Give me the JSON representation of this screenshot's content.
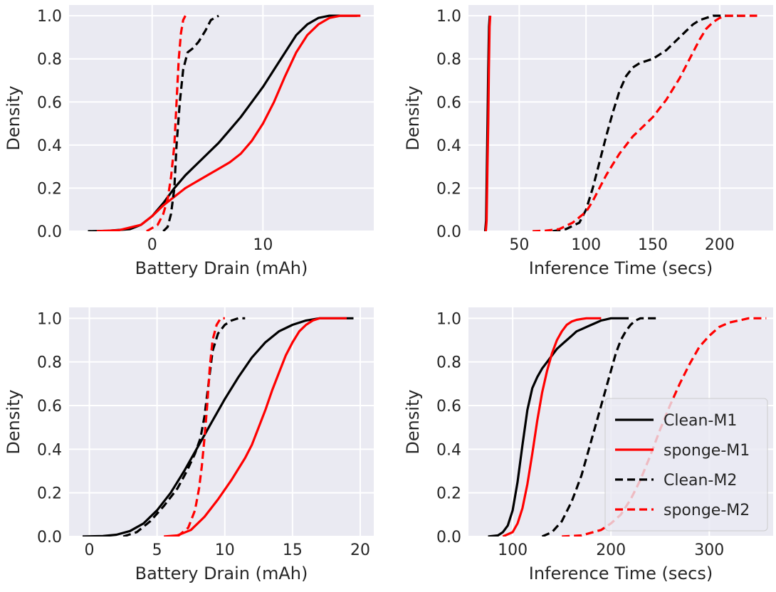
{
  "chart_data": [
    {
      "type": "line",
      "panel": "top-left",
      "xlabel": "Battery Drain (mAh)",
      "ylabel": "Density",
      "xlim": [
        -7.5,
        20
      ],
      "ylim": [
        0,
        1.05
      ],
      "xticks": [
        0,
        10
      ],
      "yticks": [
        0.0,
        0.2,
        0.4,
        0.6,
        0.8,
        1.0
      ],
      "grid": true,
      "series": [
        {
          "name": "Clean-M1",
          "color": "#000000",
          "dash": "solid",
          "x": [
            -5.8,
            -4,
            -2,
            -1,
            0,
            1,
            2,
            3,
            4,
            5,
            6,
            7,
            8,
            9,
            10,
            11,
            12,
            13,
            14,
            15,
            16,
            17,
            18.5
          ],
          "y": [
            0,
            0.002,
            0.01,
            0.03,
            0.07,
            0.13,
            0.2,
            0.26,
            0.31,
            0.36,
            0.41,
            0.47,
            0.53,
            0.6,
            0.67,
            0.75,
            0.83,
            0.91,
            0.96,
            0.99,
            1.0,
            1.0,
            1.0
          ]
        },
        {
          "name": "sponge-M1",
          "color": "#ff0000",
          "dash": "solid",
          "x": [
            -5,
            -3,
            -1,
            0,
            1,
            2,
            3,
            4,
            5,
            6,
            7,
            8,
            9,
            10,
            11,
            12,
            13,
            14,
            15,
            16,
            17,
            18,
            18.8
          ],
          "y": [
            0,
            0.005,
            0.03,
            0.07,
            0.12,
            0.16,
            0.2,
            0.23,
            0.26,
            0.29,
            0.32,
            0.36,
            0.42,
            0.5,
            0.6,
            0.72,
            0.83,
            0.91,
            0.96,
            0.99,
            1.0,
            1.0,
            1.0
          ]
        },
        {
          "name": "Clean-M2",
          "color": "#000000",
          "dash": "dashed",
          "x": [
            1.0,
            1.4,
            1.7,
            2.0,
            2.2,
            2.5,
            2.8,
            3.2,
            3.7,
            4.2,
            4.8,
            5.3,
            6.0
          ],
          "y": [
            0,
            0.02,
            0.08,
            0.2,
            0.4,
            0.6,
            0.75,
            0.83,
            0.85,
            0.88,
            0.93,
            0.98,
            1.0
          ]
        },
        {
          "name": "sponge-M2",
          "color": "#ff0000",
          "dash": "dashed",
          "x": [
            -0.5,
            0.5,
            1.0,
            1.4,
            1.7,
            2.0,
            2.2,
            2.4,
            2.6,
            2.8,
            3.0
          ],
          "y": [
            0,
            0.03,
            0.08,
            0.15,
            0.25,
            0.4,
            0.6,
            0.8,
            0.92,
            0.98,
            1.0
          ]
        }
      ]
    },
    {
      "type": "line",
      "panel": "top-right",
      "xlabel": "Inference Time (secs)",
      "ylabel": "Density",
      "xlim": [
        12,
        240
      ],
      "ylim": [
        0,
        1.05
      ],
      "xticks": [
        50,
        100,
        150,
        200
      ],
      "yticks": [
        0.0,
        0.2,
        0.4,
        0.6,
        0.8,
        1.0
      ],
      "grid": true,
      "series": [
        {
          "name": "Clean-M1",
          "color": "#000000",
          "dash": "solid",
          "x": [
            24.5,
            25.2,
            25.8,
            26.3,
            26.8,
            27.4,
            28
          ],
          "y": [
            0,
            0.05,
            0.3,
            0.5,
            0.75,
            0.95,
            1.0
          ]
        },
        {
          "name": "sponge-M1",
          "color": "#ff0000",
          "dash": "solid",
          "x": [
            25,
            25.6,
            26.2,
            26.8,
            27.3,
            27.8,
            28.3
          ],
          "y": [
            0,
            0.05,
            0.3,
            0.5,
            0.75,
            0.95,
            1.0
          ]
        },
        {
          "name": "Clean-M2",
          "color": "#000000",
          "dash": "dashed",
          "x": [
            75,
            85,
            95,
            100,
            105,
            110,
            115,
            120,
            125,
            130,
            135,
            140,
            145,
            150,
            155,
            160,
            165,
            170,
            175,
            180,
            185,
            190,
            195,
            200,
            210,
            220
          ],
          "y": [
            0,
            0.01,
            0.04,
            0.1,
            0.2,
            0.32,
            0.44,
            0.55,
            0.65,
            0.72,
            0.76,
            0.78,
            0.79,
            0.8,
            0.82,
            0.84,
            0.87,
            0.9,
            0.93,
            0.96,
            0.98,
            0.99,
            1.0,
            1.0,
            1.0,
            1.0
          ]
        },
        {
          "name": "sponge-M2",
          "color": "#ff0000",
          "dash": "dashed",
          "x": [
            60,
            70,
            80,
            90,
            100,
            105,
            110,
            115,
            120,
            125,
            130,
            135,
            140,
            145,
            150,
            155,
            160,
            165,
            170,
            175,
            180,
            185,
            190,
            195,
            200,
            205,
            210,
            220,
            228
          ],
          "y": [
            0,
            0.003,
            0.01,
            0.04,
            0.09,
            0.14,
            0.2,
            0.26,
            0.31,
            0.36,
            0.4,
            0.44,
            0.47,
            0.5,
            0.53,
            0.57,
            0.61,
            0.66,
            0.71,
            0.77,
            0.83,
            0.89,
            0.94,
            0.97,
            0.99,
            1.0,
            1.0,
            1.0,
            1.0
          ]
        }
      ]
    },
    {
      "type": "line",
      "panel": "bottom-left",
      "xlabel": "Battery Drain (mAh)",
      "ylabel": "Density",
      "xlim": [
        -1.5,
        21
      ],
      "ylim": [
        0,
        1.05
      ],
      "xticks": [
        0,
        5,
        10,
        15,
        20
      ],
      "yticks": [
        0.0,
        0.2,
        0.4,
        0.6,
        0.8,
        1.0
      ],
      "grid": true,
      "series": [
        {
          "name": "Clean-M1",
          "color": "#000000",
          "dash": "solid",
          "x": [
            -0.5,
            1,
            2,
            3,
            4,
            5,
            6,
            7,
            8,
            9,
            10,
            11,
            12,
            13,
            14,
            15,
            16,
            17,
            18,
            19.5
          ],
          "y": [
            0,
            0.002,
            0.008,
            0.025,
            0.06,
            0.12,
            0.2,
            0.3,
            0.41,
            0.52,
            0.63,
            0.73,
            0.82,
            0.89,
            0.94,
            0.97,
            0.99,
            1.0,
            1.0,
            1.0
          ]
        },
        {
          "name": "sponge-M1",
          "color": "#ff0000",
          "dash": "solid",
          "x": [
            5.5,
            6.5,
            7.5,
            8.5,
            9.5,
            10.5,
            11.5,
            12,
            12.5,
            13,
            13.5,
            14,
            14.5,
            15,
            15.5,
            16,
            16.5,
            17,
            18,
            19
          ],
          "y": [
            0,
            0.005,
            0.03,
            0.09,
            0.17,
            0.26,
            0.36,
            0.42,
            0.5,
            0.58,
            0.67,
            0.75,
            0.83,
            0.89,
            0.94,
            0.97,
            0.99,
            1.0,
            1.0,
            1.0
          ]
        },
        {
          "name": "Clean-M2",
          "color": "#000000",
          "dash": "dashed",
          "x": [
            2.5,
            3.5,
            4.5,
            5.5,
            6.5,
            7.2,
            7.8,
            8.2,
            8.5,
            8.8,
            9.1,
            9.5,
            10,
            10.5,
            11,
            11.5
          ],
          "y": [
            0,
            0.02,
            0.07,
            0.14,
            0.22,
            0.3,
            0.38,
            0.45,
            0.55,
            0.7,
            0.85,
            0.93,
            0.97,
            0.99,
            1.0,
            1.0
          ]
        },
        {
          "name": "sponge-M2",
          "color": "#ff0000",
          "dash": "dashed",
          "x": [
            6.5,
            7.3,
            7.8,
            8.1,
            8.3,
            8.5,
            8.7,
            8.9,
            9.1,
            9.4,
            9.7,
            10.0
          ],
          "y": [
            0,
            0.04,
            0.12,
            0.22,
            0.32,
            0.45,
            0.6,
            0.78,
            0.9,
            0.97,
            1.0,
            1.0
          ]
        }
      ]
    },
    {
      "type": "line",
      "panel": "bottom-right",
      "xlabel": "Inference Time (secs)",
      "ylabel": "Density",
      "xlim": [
        55,
        365
      ],
      "ylim": [
        0,
        1.05
      ],
      "xticks": [
        100,
        200,
        300
      ],
      "yticks": [
        0.0,
        0.2,
        0.4,
        0.6,
        0.8,
        1.0
      ],
      "grid": true,
      "legend": {
        "location": "lower-right",
        "entries": [
          "Clean-M1",
          "sponge-M1",
          "Clean-M2",
          "sponge-M2"
        ]
      },
      "series": [
        {
          "name": "Clean-M1",
          "color": "#000000",
          "dash": "solid",
          "x": [
            75,
            85,
            90,
            95,
            100,
            105,
            110,
            115,
            120,
            125,
            130,
            135,
            140,
            145,
            150,
            155,
            160,
            165,
            170,
            175,
            180,
            185,
            190,
            195,
            200,
            205,
            210,
            218
          ],
          "y": [
            0,
            0.005,
            0.02,
            0.05,
            0.12,
            0.25,
            0.42,
            0.58,
            0.68,
            0.73,
            0.77,
            0.8,
            0.83,
            0.86,
            0.88,
            0.9,
            0.92,
            0.94,
            0.95,
            0.96,
            0.97,
            0.98,
            0.99,
            0.995,
            1.0,
            1.0,
            1.0,
            1.0
          ]
        },
        {
          "name": "sponge-M1",
          "color": "#ff0000",
          "dash": "solid",
          "x": [
            90,
            100,
            105,
            110,
            115,
            120,
            125,
            130,
            135,
            140,
            145,
            150,
            155,
            160,
            165,
            170,
            175,
            180,
            185,
            190
          ],
          "y": [
            0,
            0.02,
            0.06,
            0.13,
            0.24,
            0.38,
            0.53,
            0.66,
            0.76,
            0.84,
            0.9,
            0.94,
            0.97,
            0.985,
            0.993,
            0.997,
            1.0,
            1.0,
            1.0,
            1.0
          ]
        },
        {
          "name": "Clean-M2",
          "color": "#000000",
          "dash": "dashed",
          "x": [
            130,
            140,
            150,
            160,
            170,
            175,
            180,
            185,
            190,
            195,
            200,
            205,
            210,
            215,
            220,
            225,
            230,
            235,
            240,
            246
          ],
          "y": [
            0,
            0.02,
            0.07,
            0.16,
            0.28,
            0.36,
            0.44,
            0.52,
            0.6,
            0.68,
            0.76,
            0.84,
            0.9,
            0.94,
            0.97,
            0.99,
            1.0,
            1.0,
            1.0,
            1.0
          ]
        },
        {
          "name": "sponge-M2",
          "color": "#ff0000",
          "dash": "dashed",
          "x": [
            150,
            170,
            190,
            200,
            210,
            220,
            230,
            240,
            250,
            260,
            270,
            280,
            290,
            300,
            310,
            320,
            330,
            340,
            350,
            358
          ],
          "y": [
            0,
            0.005,
            0.03,
            0.06,
            0.1,
            0.17,
            0.26,
            0.37,
            0.49,
            0.6,
            0.7,
            0.79,
            0.87,
            0.92,
            0.96,
            0.98,
            0.99,
            1.0,
            1.0,
            1.0
          ]
        }
      ]
    }
  ]
}
